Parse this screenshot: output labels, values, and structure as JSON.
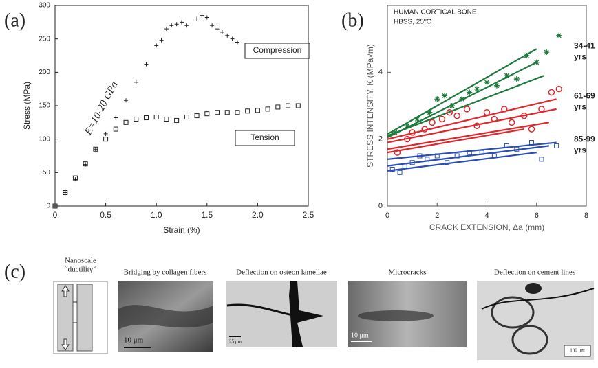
{
  "panels": {
    "a": "(a)",
    "b": "(b)",
    "c": "(c)"
  },
  "chart_data": [
    {
      "type": "scatter",
      "x_label": "Strain (%)",
      "y_label": "Stress (MPa)",
      "xlim": [
        0,
        2.5
      ],
      "xticks": [
        0,
        0.5,
        {
          "value": 1,
          "label": "1.0"
        },
        1.5,
        {
          "value": 2,
          "label": "2.0"
        },
        2.5
      ],
      "ylim": [
        0,
        300
      ],
      "yticks": [
        0,
        50,
        100,
        150,
        200,
        250,
        300
      ],
      "annotations": [
        "Compression",
        "Tension",
        "E=10-20 GPa"
      ],
      "series": [
        {
          "name": "Compression",
          "color": "#222",
          "marker": "plus",
          "x": [
            0,
            0.1,
            0.2,
            0.3,
            0.4,
            0.5,
            0.6,
            0.7,
            0.8,
            0.9,
            1.0,
            1.05,
            1.1,
            1.15,
            1.2,
            1.25,
            1.3,
            1.4,
            1.45,
            1.5,
            1.55,
            1.6,
            1.65,
            1.7,
            1.75,
            1.8
          ],
          "values": [
            0,
            20,
            40,
            62,
            85,
            108,
            132,
            158,
            185,
            212,
            240,
            248,
            265,
            270,
            272,
            275,
            270,
            280,
            285,
            282,
            270,
            265,
            260,
            255,
            250,
            245
          ]
        },
        {
          "name": "Tension",
          "color": "#222",
          "marker": "square",
          "x": [
            0,
            0.1,
            0.2,
            0.3,
            0.4,
            0.5,
            0.6,
            0.7,
            0.8,
            0.9,
            1.0,
            1.1,
            1.2,
            1.3,
            1.4,
            1.5,
            1.6,
            1.7,
            1.8,
            1.9,
            2.0,
            2.1,
            2.2,
            2.3,
            2.4
          ],
          "values": [
            0,
            20,
            42,
            63,
            85,
            100,
            115,
            125,
            130,
            132,
            133,
            130,
            128,
            133,
            135,
            138,
            140,
            140,
            140,
            142,
            143,
            145,
            148,
            150,
            150
          ]
        }
      ]
    },
    {
      "type": "scatter",
      "x_label": "CRACK EXTENSION, Δa (mm)",
      "y_label": "STRESS INTENSITY, K (MPa√m)",
      "notes": [
        "HUMAN CORTICAL BONE",
        "HBSS, 25ºC"
      ],
      "xlim": [
        0,
        8
      ],
      "xticks": [
        0,
        2,
        4,
        6,
        8
      ],
      "ylim": [
        0,
        6
      ],
      "yticks": [
        0,
        2,
        4
      ],
      "series": [
        {
          "name": [
            "34-41",
            "yrs"
          ],
          "color": "#1e7a3c",
          "marker": "star",
          "x": [
            0.3,
            0.8,
            1.2,
            1.7,
            2.0,
            2.3,
            2.6,
            3.0,
            3.3,
            3.6,
            4.0,
            4.4,
            4.8,
            5.2,
            5.6,
            6.0,
            6.4,
            6.9
          ],
          "values": [
            2.2,
            2.4,
            2.6,
            2.8,
            3.2,
            3.3,
            3.0,
            3.2,
            3.4,
            3.5,
            3.7,
            3.6,
            3.9,
            3.8,
            4.5,
            4.3,
            4.6,
            5.1
          ],
          "fits": [
            {
              "x": [
                0,
                6
              ],
              "values": [
                2.15,
                4.7
              ]
            },
            {
              "x": [
                0,
                6.3
              ],
              "values": [
                2.1,
                3.9
              ]
            },
            {
              "x": [
                0,
                6
              ],
              "values": [
                2.05,
                4.3
              ]
            }
          ]
        },
        {
          "name": [
            "61-69",
            "yrs"
          ],
          "color": "#e0262a",
          "marker": "circle",
          "x": [
            0.4,
            0.8,
            1.0,
            1.5,
            1.8,
            2.2,
            2.5,
            2.8,
            3.2,
            3.6,
            4.0,
            4.3,
            4.7,
            5.0,
            5.5,
            5.8,
            6.2,
            6.6,
            6.9
          ],
          "values": [
            1.6,
            2.0,
            2.2,
            2.3,
            2.5,
            2.6,
            2.8,
            2.7,
            2.9,
            2.4,
            2.8,
            2.6,
            2.9,
            2.5,
            2.7,
            2.3,
            2.9,
            3.4,
            3.5
          ],
          "fits": [
            {
              "x": [
                0,
                6.8
              ],
              "values": [
                2.0,
                3.2
              ]
            },
            {
              "x": [
                0,
                6.8
              ],
              "values": [
                1.9,
                2.9
              ]
            },
            {
              "x": [
                0,
                6.5
              ],
              "values": [
                1.7,
                2.5
              ]
            },
            {
              "x": [
                0,
                5.5
              ],
              "values": [
                1.6,
                2.3
              ]
            }
          ]
        },
        {
          "name": [
            "85-99",
            "yrs"
          ],
          "color": "#2a4cb5",
          "marker": "square",
          "x": [
            0.2,
            0.5,
            0.7,
            1.0,
            1.3,
            1.6,
            2.0,
            2.4,
            2.8,
            3.3,
            3.8,
            4.3,
            4.8,
            5.2,
            5.8,
            6.2,
            6.8
          ],
          "values": [
            1.1,
            1.0,
            1.2,
            1.3,
            1.5,
            1.4,
            1.5,
            1.3,
            1.5,
            1.6,
            1.6,
            1.5,
            1.8,
            1.7,
            1.9,
            1.4,
            1.8
          ],
          "fits": [
            {
              "x": [
                0,
                6.8
              ],
              "values": [
                1.4,
                1.9
              ]
            },
            {
              "x": [
                0,
                6.5
              ],
              "values": [
                1.2,
                1.8
              ]
            },
            {
              "x": [
                0,
                6
              ],
              "values": [
                1.05,
                1.6
              ]
            }
          ]
        }
      ]
    }
  ],
  "images": [
    {
      "caption": [
        "Nanoscale",
        "“ductility”"
      ]
    },
    {
      "caption": "Bridging by collagen fibers",
      "scale": "10 μm"
    },
    {
      "caption": "Deflection on osteon lamellae",
      "scale": "25 μm"
    },
    {
      "caption": "Microcracks",
      "scale": "10 μm"
    },
    {
      "caption": "Deflection on cement lines",
      "scale": "100 μm"
    }
  ]
}
